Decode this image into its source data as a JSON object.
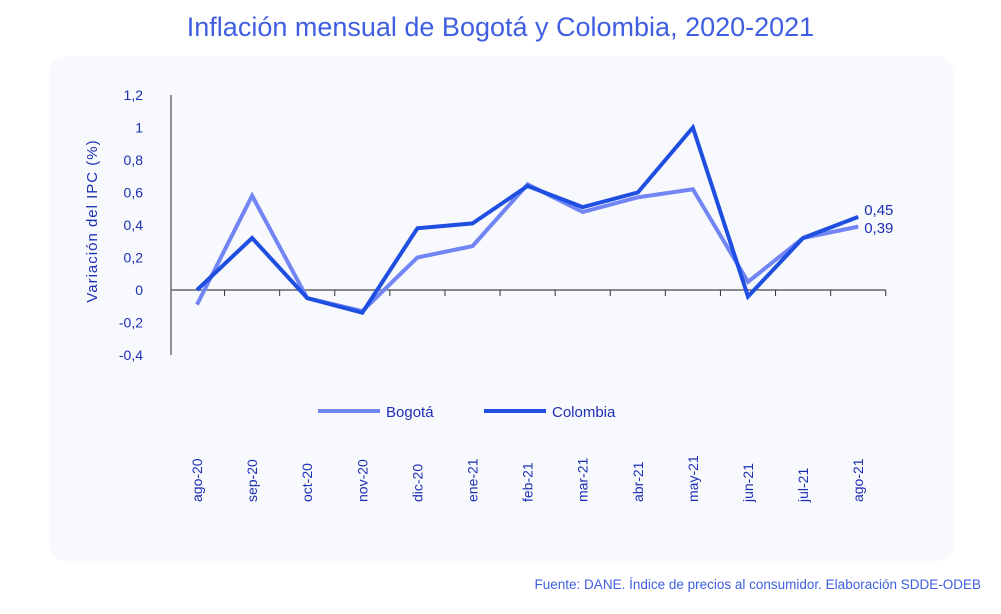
{
  "chart_data": {
    "type": "line",
    "title": "Inflación mensual de Bogotá y Colombia, 2020-2021",
    "xlabel": "",
    "ylabel": "Variación  del  IPC  (%)",
    "ylim": [
      -0.4,
      1.2
    ],
    "yticks": [
      1.2,
      1,
      0.8,
      0.6,
      0.4,
      0.2,
      0,
      -0.2,
      -0.4
    ],
    "ytick_labels": [
      "1,2",
      "1",
      "0,8",
      "0,6",
      "0,4",
      "0,2",
      "0",
      "-0,2",
      "-0,4"
    ],
    "categories": [
      "ago-20",
      "sep-20",
      "oct-20",
      "nov-20",
      "dic-20",
      "ene-21",
      "feb-21",
      "mar-21",
      "abr-21",
      "may-21",
      "jun-21",
      "jul-21",
      "ago-21"
    ],
    "series": [
      {
        "name": "Bogotá",
        "color": "#7185f5",
        "values": [
          -0.09,
          0.58,
          -0.05,
          -0.13,
          0.2,
          0.27,
          0.65,
          0.48,
          0.57,
          0.62,
          0.05,
          0.32,
          0.39
        ],
        "end_label": "0,39"
      },
      {
        "name": "Colombia",
        "color": "#1f4fe0",
        "values": [
          0.0,
          0.32,
          -0.05,
          -0.14,
          0.38,
          0.41,
          0.64,
          0.51,
          0.6,
          1.0,
          -0.04,
          0.32,
          0.45
        ],
        "end_label": "0,45"
      }
    ],
    "legend_position": "bottom-center",
    "grid": false
  },
  "source": "Fuente: DANE. Índice de precios al consumidor. Elaboración SDDE-ODEB"
}
